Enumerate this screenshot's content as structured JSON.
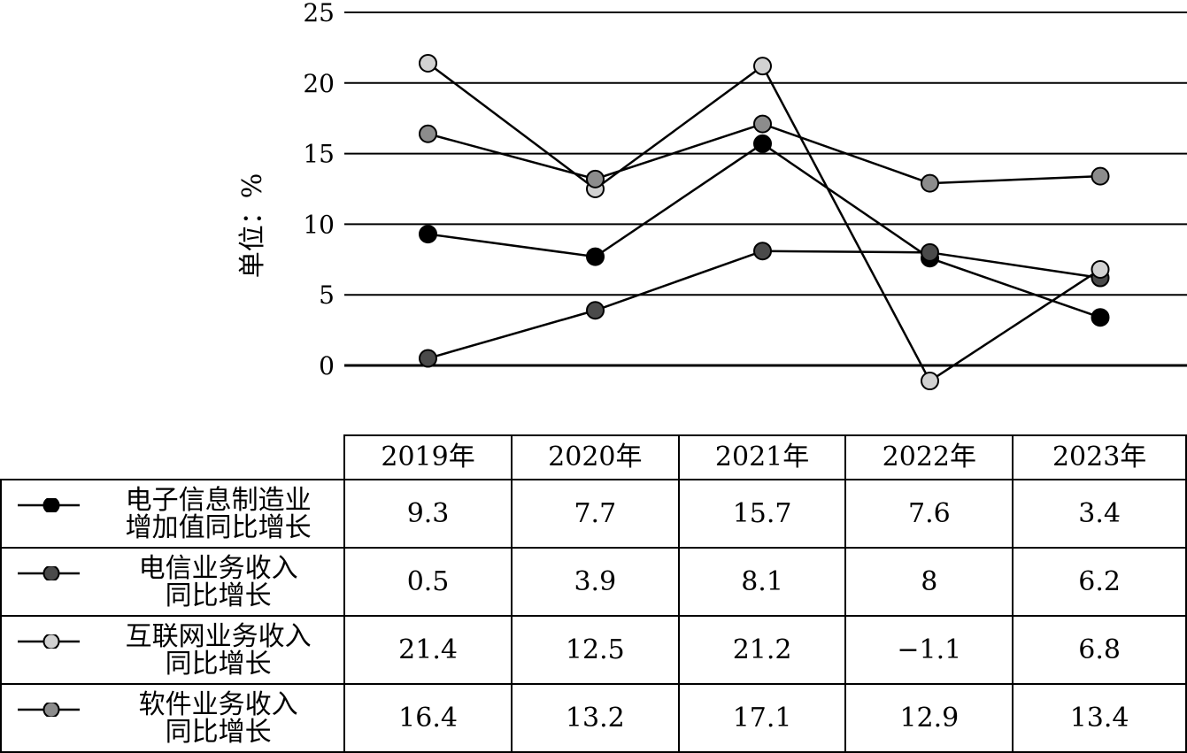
{
  "chart_data": {
    "type": "line",
    "ylabel": "单位：%",
    "ylim": [
      0,
      25
    ],
    "yticks": [
      "25",
      "20",
      "15",
      "10",
      "5",
      "0"
    ],
    "grid": true,
    "categories": [
      "2019年",
      "2020年",
      "2021年",
      "2022年",
      "2023年"
    ],
    "series": [
      {
        "name": "电子信息制造业\n增加值同比增长",
        "values": [
          9.3,
          7.7,
          15.7,
          7.6,
          3.4
        ],
        "values_text": [
          "9.3",
          "7.7",
          "15.7",
          "7.6",
          "3.4"
        ],
        "color": "#000000"
      },
      {
        "name": "电信业务收入\n同比增长",
        "values": [
          0.5,
          3.9,
          8.1,
          8,
          6.2
        ],
        "values_text": [
          "0.5",
          "3.9",
          "8.1",
          "8",
          "6.2"
        ],
        "color": "#4a4a4a"
      },
      {
        "name": "互联网业务收入\n同比增长",
        "values": [
          21.4,
          12.5,
          21.2,
          -1.1,
          6.8
        ],
        "values_text": [
          "21.4",
          "12.5",
          "21.2",
          "−1.1",
          "6.8"
        ],
        "color": "#d2d2d2"
      },
      {
        "name": "软件业务收入\n同比增长",
        "values": [
          16.4,
          13.2,
          17.1,
          12.9,
          13.4
        ],
        "values_text": [
          "16.4",
          "13.2",
          "17.1",
          "12.9",
          "13.4"
        ],
        "color": "#8c8c8c"
      }
    ]
  }
}
